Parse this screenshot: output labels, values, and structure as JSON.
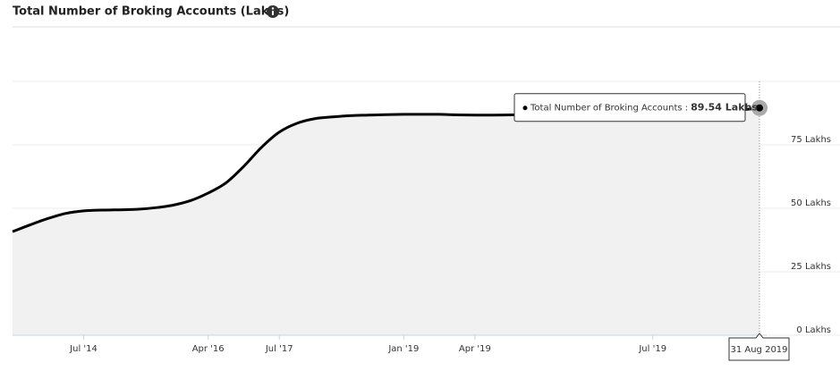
{
  "chart_data": {
    "type": "area",
    "title": "Total Number of Broking Accounts (Lakhs)",
    "categories": [
      null,
      null,
      null,
      null,
      "Jul '14",
      null,
      null,
      null,
      null,
      null,
      null,
      "Apr '16",
      null,
      null,
      null,
      "Jul '17",
      null,
      null,
      null,
      null,
      null,
      null,
      "Jan '19",
      null,
      null,
      null,
      "Apr '19",
      null,
      null,
      null,
      null,
      null,
      null,
      null,
      null,
      null,
      "Jul '19",
      null,
      null,
      null,
      null,
      null,
      "31 Aug 2019"
    ],
    "series": [
      {
        "name": "Total Number of Broking Accounts :",
        "color": "#000000",
        "values": [
          40.8,
          43.5,
          46,
          48,
          49,
          49.3,
          49.4,
          49.6,
          50.2,
          51.2,
          53,
          56,
          60,
          66.5,
          74,
          80,
          83.5,
          85.3,
          86,
          86.5,
          86.7,
          86.9,
          87,
          87,
          87,
          86.8,
          86.7,
          86.7,
          86.8,
          86.9,
          87,
          87.1,
          87.2,
          87.3,
          87.5,
          87.6,
          87.8,
          88,
          88.2,
          88.4,
          88.6,
          88.8,
          89.54
        ],
        "value_labels": [
          null,
          null,
          null,
          null,
          null,
          null,
          null,
          null,
          null,
          null,
          null,
          null,
          null,
          null,
          null,
          null,
          null,
          null,
          null,
          null,
          null,
          null,
          null,
          null,
          null,
          null,
          null,
          null,
          null,
          null,
          null,
          null,
          null,
          null,
          null,
          null,
          null,
          null,
          null,
          null,
          null,
          null,
          "89.54 Lakhs"
        ]
      }
    ],
    "ylim": [
      0,
      100
    ],
    "yticks": [
      {
        "value": 0,
        "label": "0 Lakhs"
      },
      {
        "value": 25,
        "label": "25 Lakhs"
      },
      {
        "value": 50,
        "label": "50 Lakhs"
      },
      {
        "value": 75,
        "label": "75 Lakhs"
      }
    ],
    "grid": true,
    "fill": "#f1f1f1"
  }
}
